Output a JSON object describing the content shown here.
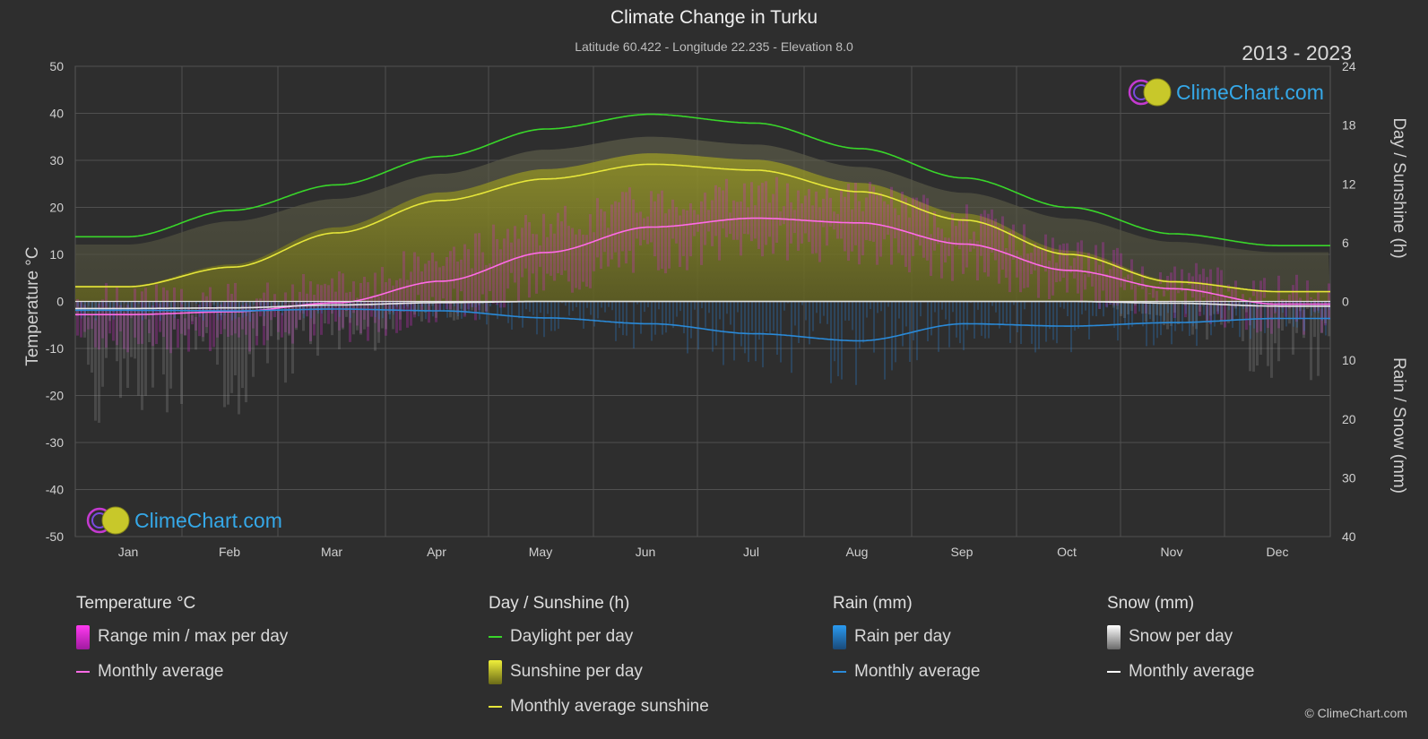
{
  "header": {
    "title": "Climate Change in Turku",
    "subtitle": "Latitude 60.422 - Longitude 22.235 - Elevation 8.0",
    "year_range": "2013 - 2023"
  },
  "axes": {
    "left_title": "Temperature °C",
    "right_top_title": "Day / Sunshine (h)",
    "right_bottom_title": "Rain / Snow (mm)"
  },
  "logo": {
    "text": "ClimeChart.com"
  },
  "copyright": "© ClimeChart.com",
  "legend": {
    "temperature": {
      "header": "Temperature °C",
      "range_label": "Range min / max per day",
      "avg_label": "Monthly average"
    },
    "sunshine": {
      "header": "Day / Sunshine (h)",
      "daylight_label": "Daylight per day",
      "sunshine_label": "Sunshine per day",
      "avg_label": "Monthly average sunshine"
    },
    "rain": {
      "header": "Rain (mm)",
      "per_day_label": "Rain per day",
      "avg_label": "Monthly average"
    },
    "snow": {
      "header": "Snow (mm)",
      "per_day_label": "Snow per day",
      "avg_label": "Monthly average"
    }
  },
  "colors": {
    "background": "#2e2e2e",
    "daylight": "#39d62a",
    "sunshine": "#c8c82a",
    "sunshine_avg": "#e6e63a",
    "temp_avg": "#ff6be6",
    "temp_range": "#d82ad0",
    "rain": "#2a8ad8",
    "snow": "#d8d8d8",
    "logo": "#35a8e8"
  },
  "chart_data": {
    "type": "line",
    "categories": [
      "Jan",
      "Feb",
      "Mar",
      "Apr",
      "May",
      "Jun",
      "Jul",
      "Aug",
      "Sep",
      "Oct",
      "Nov",
      "Dec"
    ],
    "temp_axis": {
      "ylim": [
        -50,
        50
      ],
      "ticks": [
        50,
        40,
        30,
        20,
        10,
        0,
        -10,
        -20,
        -30,
        -40,
        -50
      ]
    },
    "sun_axis": {
      "ylim": [
        0,
        24
      ],
      "ticks": [
        24,
        18,
        12,
        6,
        0
      ]
    },
    "precip_axis": {
      "ylim": [
        0,
        40
      ],
      "ticks": [
        0,
        10,
        20,
        30,
        40
      ]
    },
    "series": [
      {
        "name": "Daylight per day",
        "axis": "sun",
        "values": [
          6.6,
          9.3,
          11.9,
          14.8,
          17.6,
          19.1,
          18.2,
          15.6,
          12.6,
          9.6,
          6.9,
          5.7
        ]
      },
      {
        "name": "Monthly average sunshine",
        "axis": "sun",
        "values": [
          1.5,
          3.5,
          7.0,
          10.3,
          12.5,
          14.0,
          13.4,
          11.2,
          8.3,
          4.8,
          2.0,
          1.0
        ]
      },
      {
        "name": "Monthly average",
        "axis": "temp",
        "values": [
          -2.8,
          -2.2,
          -0.3,
          4.3,
          10.4,
          15.8,
          17.7,
          16.7,
          12.2,
          6.6,
          2.7,
          -0.6
        ]
      },
      {
        "name": "Monthly average",
        "axis": "rain",
        "values": [
          1.5,
          1.6,
          1.3,
          1.6,
          2.8,
          3.8,
          5.5,
          6.7,
          3.8,
          4.2,
          3.6,
          2.9
        ]
      },
      {
        "name": "Monthly average",
        "axis": "snow",
        "values": [
          1.2,
          1.1,
          0.6,
          0.2,
          0.0,
          0.0,
          0.0,
          0.0,
          0.0,
          0.0,
          0.3,
          0.8
        ]
      }
    ],
    "temp_range_monthly": {
      "min": [
        -7,
        -7,
        -5,
        -1,
        4,
        10,
        13,
        12,
        8,
        3,
        0,
        -3
      ],
      "max": [
        0,
        0,
        3,
        9,
        16,
        21,
        23,
        22,
        17,
        10,
        5,
        2
      ]
    },
    "sunshine_envelope_daylight": [
      6.6,
      9.3,
      11.9,
      14.8,
      17.6,
      19.1,
      18.2,
      15.6,
      12.6,
      9.6,
      6.9,
      5.7
    ],
    "grid": true,
    "legend_placement": "bottom"
  }
}
